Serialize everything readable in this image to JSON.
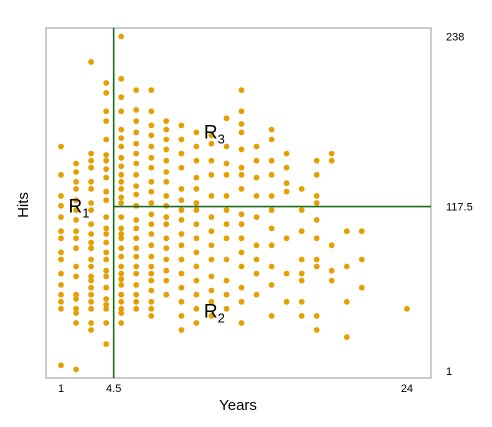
{
  "chart_data": {
    "type": "scatter",
    "xlabel": "Years",
    "ylabel": "Hits",
    "x_ticks": [
      "1",
      "4.5",
      "24"
    ],
    "x_tick_values": [
      1,
      4.5,
      24
    ],
    "y_ticks": [
      "238",
      "117.5",
      "1"
    ],
    "y_tick_values": [
      238,
      117.5,
      1
    ],
    "xlim": [
      0,
      25.6
    ],
    "ylim": [
      -4,
      244
    ],
    "grid": false,
    "point_color": "#E69F00",
    "line_color": "#1B6B1B",
    "split_lines": [
      {
        "axis": "x",
        "value": 4.5
      },
      {
        "axis": "y",
        "value": 117.5,
        "from_x": 4.5
      }
    ],
    "regions": [
      {
        "main": "R",
        "sub": "1",
        "x": 1.5,
        "y": 117.5
      },
      {
        "main": "R",
        "sub": "2",
        "x": 10.5,
        "y": 43
      },
      {
        "main": "R",
        "sub": "3",
        "x": 10.5,
        "y": 170
      }
    ],
    "points": [
      [
        1,
        5
      ],
      [
        1,
        45
      ],
      [
        1,
        50
      ],
      [
        1,
        55
      ],
      [
        1,
        62
      ],
      [
        1,
        70
      ],
      [
        1,
        80
      ],
      [
        1,
        85
      ],
      [
        1,
        95
      ],
      [
        1,
        100
      ],
      [
        1,
        110
      ],
      [
        1,
        118
      ],
      [
        1,
        125
      ],
      [
        1,
        140
      ],
      [
        1,
        160
      ],
      [
        2,
        2
      ],
      [
        2,
        35
      ],
      [
        2,
        42
      ],
      [
        2,
        45
      ],
      [
        2,
        52
      ],
      [
        2,
        55
      ],
      [
        2,
        68
      ],
      [
        2,
        75
      ],
      [
        2,
        88
      ],
      [
        2,
        95
      ],
      [
        2,
        100
      ],
      [
        2,
        108
      ],
      [
        2,
        115
      ],
      [
        2,
        122
      ],
      [
        2,
        130
      ],
      [
        2,
        135
      ],
      [
        2,
        142
      ],
      [
        2,
        148
      ],
      [
        3,
        30
      ],
      [
        3,
        35
      ],
      [
        3,
        45
      ],
      [
        3,
        50
      ],
      [
        3,
        55
      ],
      [
        3,
        60
      ],
      [
        3,
        65
      ],
      [
        3,
        68
      ],
      [
        3,
        75
      ],
      [
        3,
        80
      ],
      [
        3,
        88
      ],
      [
        3,
        92
      ],
      [
        3,
        98
      ],
      [
        3,
        105
      ],
      [
        3,
        115
      ],
      [
        3,
        120
      ],
      [
        3,
        130
      ],
      [
        3,
        135
      ],
      [
        3,
        145
      ],
      [
        3,
        150
      ],
      [
        3,
        155
      ],
      [
        3,
        220
      ],
      [
        4,
        20
      ],
      [
        4,
        35
      ],
      [
        4,
        45
      ],
      [
        4,
        48
      ],
      [
        4,
        52
      ],
      [
        4,
        60
      ],
      [
        4,
        68
      ],
      [
        4,
        72
      ],
      [
        4,
        80
      ],
      [
        4,
        85
      ],
      [
        4,
        92
      ],
      [
        4,
        98
      ],
      [
        4,
        102
      ],
      [
        4,
        110
      ],
      [
        4,
        122
      ],
      [
        4,
        128
      ],
      [
        4,
        138
      ],
      [
        4,
        144
      ],
      [
        4,
        150
      ],
      [
        4,
        154
      ],
      [
        4,
        165
      ],
      [
        4,
        178
      ],
      [
        4,
        185
      ],
      [
        4,
        198
      ],
      [
        4,
        205
      ],
      [
        5,
        35
      ],
      [
        5,
        42
      ],
      [
        5,
        45
      ],
      [
        5,
        50
      ],
      [
        5,
        55
      ],
      [
        5,
        62
      ],
      [
        5,
        66
      ],
      [
        5,
        70
      ],
      [
        5,
        75
      ],
      [
        5,
        82
      ],
      [
        5,
        88
      ],
      [
        5,
        95
      ],
      [
        5,
        98
      ],
      [
        5,
        102
      ],
      [
        5,
        110
      ],
      [
        5,
        120
      ],
      [
        5,
        124
      ],
      [
        5,
        130
      ],
      [
        5,
        135
      ],
      [
        5,
        140
      ],
      [
        5,
        146
      ],
      [
        5,
        152
      ],
      [
        5,
        160
      ],
      [
        5,
        166
      ],
      [
        5,
        172
      ],
      [
        5,
        185
      ],
      [
        5,
        195
      ],
      [
        5,
        208
      ],
      [
        5,
        238
      ],
      [
        6,
        45
      ],
      [
        6,
        50
      ],
      [
        6,
        55
      ],
      [
        6,
        62
      ],
      [
        6,
        70
      ],
      [
        6,
        75
      ],
      [
        6,
        82
      ],
      [
        6,
        88
      ],
      [
        6,
        95
      ],
      [
        6,
        102
      ],
      [
        6,
        108
      ],
      [
        6,
        118
      ],
      [
        6,
        126
      ],
      [
        6,
        132
      ],
      [
        6,
        140
      ],
      [
        6,
        148
      ],
      [
        6,
        155
      ],
      [
        6,
        162
      ],
      [
        6,
        170
      ],
      [
        6,
        178
      ],
      [
        6,
        186
      ],
      [
        6,
        200
      ],
      [
        7,
        40
      ],
      [
        7,
        45
      ],
      [
        7,
        50
      ],
      [
        7,
        58
      ],
      [
        7,
        65
      ],
      [
        7,
        70
      ],
      [
        7,
        75
      ],
      [
        7,
        82
      ],
      [
        7,
        90
      ],
      [
        7,
        98
      ],
      [
        7,
        105
      ],
      [
        7,
        112
      ],
      [
        7,
        120
      ],
      [
        7,
        128
      ],
      [
        7,
        135
      ],
      [
        7,
        145
      ],
      [
        7,
        152
      ],
      [
        7,
        160
      ],
      [
        7,
        168
      ],
      [
        7,
        175
      ],
      [
        7,
        185
      ],
      [
        7,
        200
      ],
      [
        8,
        55
      ],
      [
        8,
        65
      ],
      [
        8,
        72
      ],
      [
        8,
        80
      ],
      [
        8,
        88
      ],
      [
        8,
        95
      ],
      [
        8,
        105
      ],
      [
        8,
        110
      ],
      [
        8,
        118
      ],
      [
        8,
        125
      ],
      [
        8,
        135
      ],
      [
        8,
        142
      ],
      [
        8,
        150
      ],
      [
        8,
        158
      ],
      [
        8,
        165
      ],
      [
        8,
        172
      ],
      [
        8,
        178
      ],
      [
        9,
        30
      ],
      [
        9,
        40
      ],
      [
        9,
        50
      ],
      [
        9,
        60
      ],
      [
        9,
        70
      ],
      [
        9,
        80
      ],
      [
        9,
        90
      ],
      [
        9,
        98
      ],
      [
        9,
        108
      ],
      [
        9,
        115
      ],
      [
        9,
        122
      ],
      [
        9,
        130
      ],
      [
        9,
        145
      ],
      [
        9,
        155
      ],
      [
        9,
        165
      ],
      [
        9,
        175
      ],
      [
        10,
        35
      ],
      [
        10,
        45
      ],
      [
        10,
        55
      ],
      [
        10,
        65
      ],
      [
        10,
        75
      ],
      [
        10,
        85
      ],
      [
        10,
        95
      ],
      [
        10,
        105
      ],
      [
        10,
        115
      ],
      [
        10,
        120
      ],
      [
        10,
        130
      ],
      [
        10,
        138
      ],
      [
        10,
        150
      ],
      [
        10,
        160
      ],
      [
        10,
        170
      ],
      [
        11,
        40
      ],
      [
        11,
        50
      ],
      [
        11,
        58
      ],
      [
        11,
        68
      ],
      [
        11,
        80
      ],
      [
        11,
        90
      ],
      [
        11,
        100
      ],
      [
        11,
        110
      ],
      [
        11,
        125
      ],
      [
        11,
        140
      ],
      [
        11,
        150
      ],
      [
        11,
        162
      ],
      [
        11,
        168
      ],
      [
        12,
        45
      ],
      [
        12,
        55
      ],
      [
        12,
        65
      ],
      [
        12,
        80
      ],
      [
        12,
        95
      ],
      [
        12,
        105
      ],
      [
        12,
        115
      ],
      [
        12,
        125
      ],
      [
        12,
        140
      ],
      [
        12,
        148
      ],
      [
        12,
        160
      ],
      [
        12,
        180
      ],
      [
        13,
        35
      ],
      [
        13,
        50
      ],
      [
        13,
        60
      ],
      [
        13,
        75
      ],
      [
        13,
        85
      ],
      [
        13,
        95
      ],
      [
        13,
        105
      ],
      [
        13,
        112
      ],
      [
        13,
        130
      ],
      [
        13,
        140
      ],
      [
        13,
        145
      ],
      [
        13,
        158
      ],
      [
        13,
        170
      ],
      [
        13,
        176
      ],
      [
        13,
        185
      ],
      [
        13,
        200
      ],
      [
        14,
        55
      ],
      [
        14,
        70
      ],
      [
        14,
        80
      ],
      [
        14,
        90
      ],
      [
        14,
        110
      ],
      [
        14,
        125
      ],
      [
        14,
        138
      ],
      [
        14,
        150
      ],
      [
        14,
        160
      ],
      [
        15,
        40
      ],
      [
        15,
        62
      ],
      [
        15,
        75
      ],
      [
        15,
        90
      ],
      [
        15,
        102
      ],
      [
        15,
        115
      ],
      [
        15,
        125
      ],
      [
        15,
        140
      ],
      [
        15,
        150
      ],
      [
        15,
        165
      ],
      [
        15,
        172
      ],
      [
        16,
        50
      ],
      [
        16,
        70
      ],
      [
        16,
        95
      ],
      [
        16,
        128
      ],
      [
        16,
        134
      ],
      [
        16,
        145
      ],
      [
        16,
        155
      ],
      [
        17,
        40
      ],
      [
        17,
        50
      ],
      [
        17,
        65
      ],
      [
        17,
        70
      ],
      [
        17,
        80
      ],
      [
        17,
        100
      ],
      [
        17,
        115
      ],
      [
        17,
        130
      ],
      [
        18,
        30
      ],
      [
        18,
        40
      ],
      [
        18,
        75
      ],
      [
        18,
        80
      ],
      [
        18,
        95
      ],
      [
        18,
        108
      ],
      [
        18,
        120
      ],
      [
        18,
        125
      ],
      [
        18,
        140
      ],
      [
        18,
        150
      ],
      [
        19,
        65
      ],
      [
        19,
        72
      ],
      [
        19,
        90
      ],
      [
        19,
        150
      ],
      [
        19,
        155
      ],
      [
        20,
        25
      ],
      [
        20,
        50
      ],
      [
        20,
        75
      ],
      [
        20,
        100
      ],
      [
        21,
        60
      ],
      [
        21,
        80
      ],
      [
        21,
        100
      ],
      [
        24,
        45
      ]
    ]
  }
}
